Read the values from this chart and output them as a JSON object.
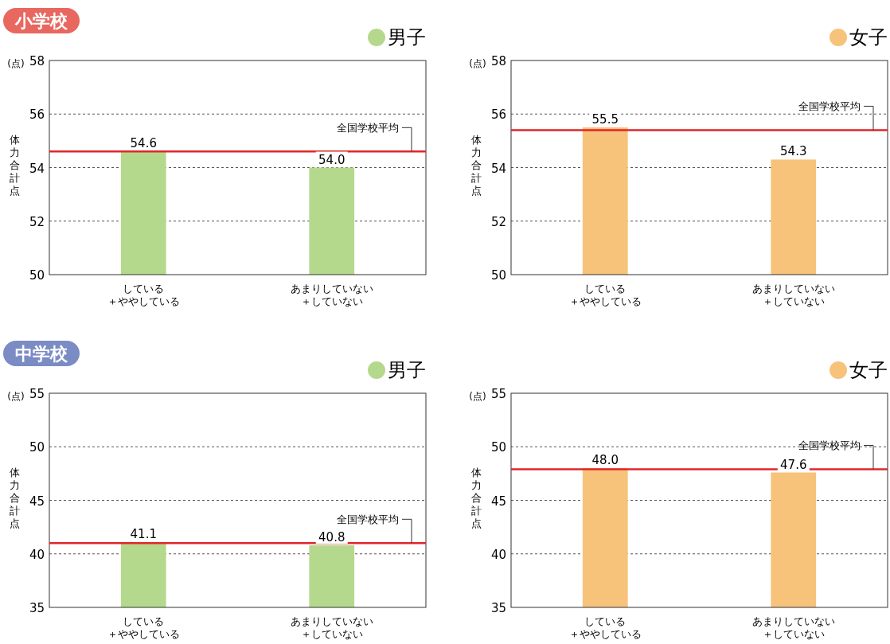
{
  "chart_data": [
    {
      "type": "bar",
      "title": "小学校",
      "categories": [
        "している＋ややしている",
        "あまりしていない＋していない"
      ],
      "series": [
        {
          "name": "男子",
          "color": "#b5d98c",
          "values": [
            54.6,
            54.0
          ],
          "value_labels": [
            "54.6",
            "54.0"
          ]
        }
      ],
      "ylim": [
        50,
        58
      ],
      "yticks": [
        50,
        52,
        54,
        56,
        58
      ],
      "grid": "y",
      "legend": "top right",
      "ylabel": "体力合計点",
      "annotations": [
        "(点)"
      ],
      "ref_lines": [
        {
          "axis": "y",
          "value": 54.6,
          "label": "全国学校平均",
          "color": "#e0262b"
        }
      ]
    },
    {
      "type": "bar",
      "categories": [
        "している＋ややしている",
        "あまりしていない＋していない"
      ],
      "series": [
        {
          "name": "女子",
          "color": "#f7c27a",
          "values": [
            55.5,
            54.3
          ]
        }
      ],
      "ylim": [
        50,
        58
      ],
      "yticks": [
        50,
        52,
        54,
        56,
        58
      ],
      "grid": "y",
      "legend": "top right",
      "data_labels": true,
      "ylabel": "体力合計点",
      "annotations": [
        "(点)"
      ],
      "ref_lines": [
        {
          "axis": "y",
          "value": 55.4,
          "label": "全国学校平均",
          "color": "#e0262b"
        }
      ]
    },
    {
      "type": "bar",
      "title": "中学校",
      "categories": [
        "している＋ややしている",
        "あまりしていない＋していない"
      ],
      "series": [
        {
          "name": "男子",
          "color": "#b5d98c",
          "values": [
            41.1,
            40.8
          ]
        }
      ],
      "ylim": [
        35,
        55
      ],
      "yticks": [
        35,
        40,
        45,
        50,
        55
      ],
      "grid": "y",
      "legend": "top right",
      "data_labels": true,
      "ylabel": "体力合計点",
      "annotations": [
        "(点)"
      ],
      "ref_lines": [
        {
          "axis": "y",
          "value": 41.0,
          "label": "全国学校平均",
          "color": "#e0262b"
        }
      ]
    },
    {
      "type": "bar",
      "categories": [
        "している＋ややしている",
        "あまりしていない＋していない"
      ],
      "series": [
        {
          "name": "女子",
          "color": "#f7c27a",
          "values": [
            48.0,
            47.6
          ],
          "value_labels": [
            "48.0",
            "47.6"
          ]
        }
      ],
      "ylim": [
        35,
        55
      ],
      "yticks": [
        35,
        40,
        45,
        50,
        55
      ],
      "grid": "y",
      "legend": "top right",
      "ylabel": "体力合計点",
      "annotations": [
        "(点)"
      ],
      "ref_lines": [
        {
          "axis": "y",
          "value": 47.9,
          "label": "全国学校平均",
          "color": "#e0262b"
        }
      ]
    }
  ]
}
